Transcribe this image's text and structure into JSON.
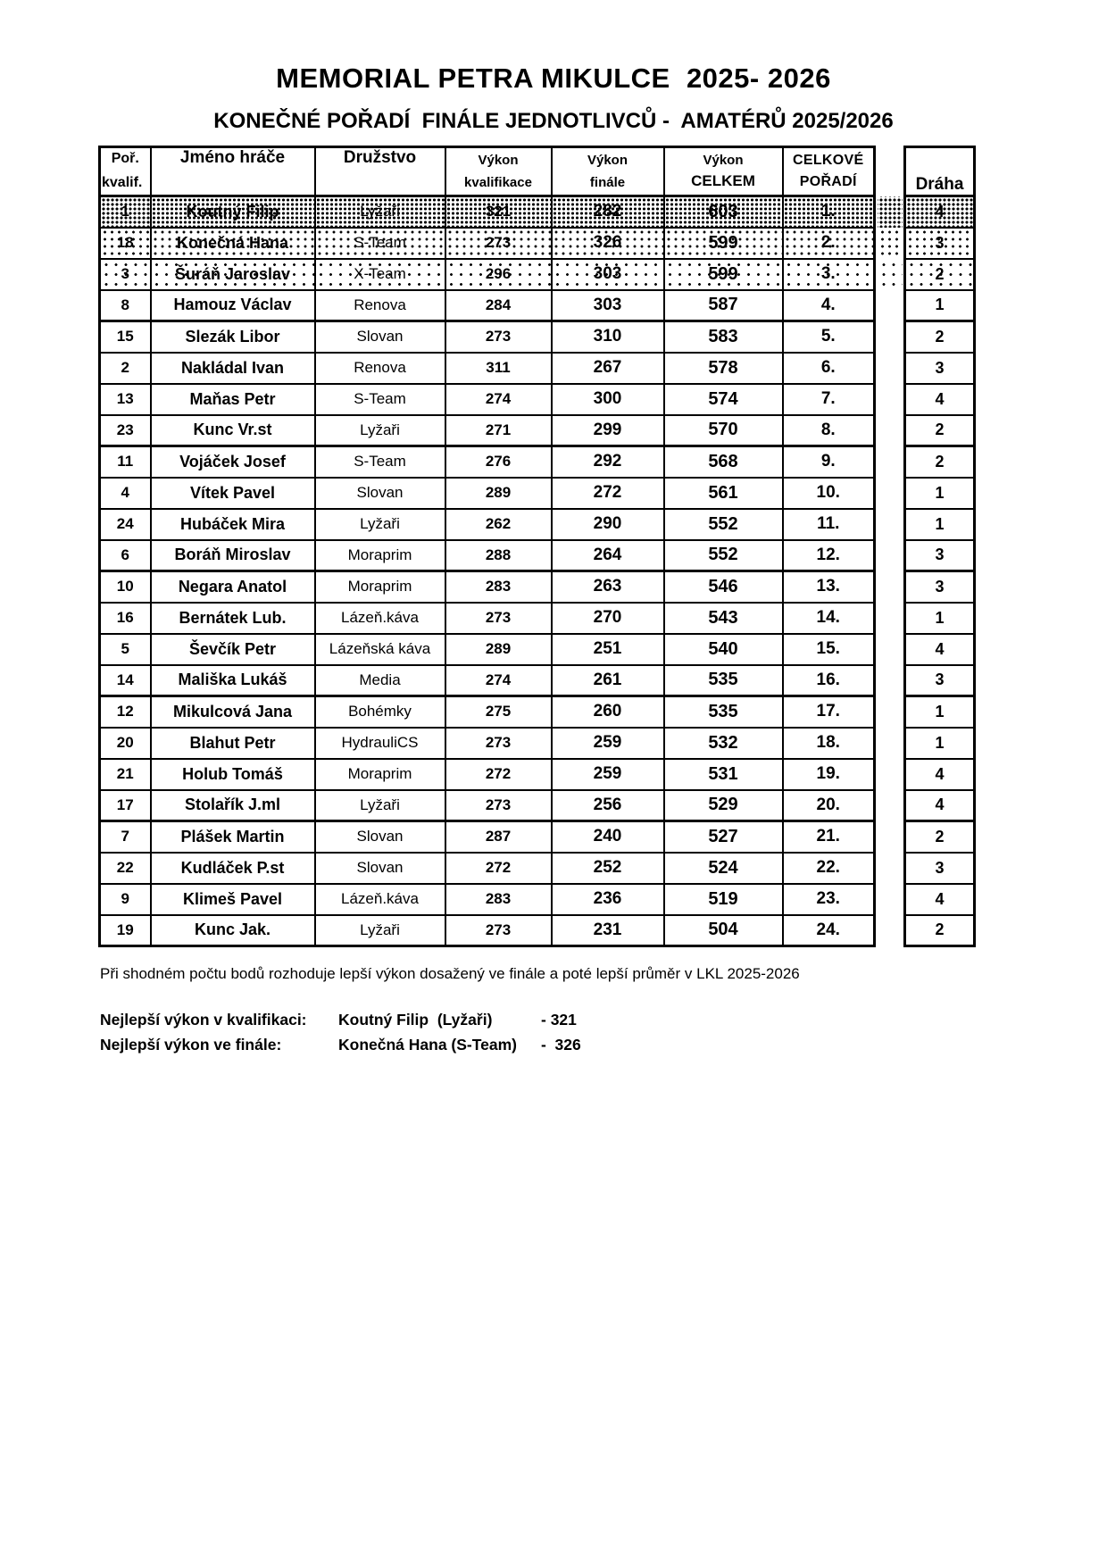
{
  "title": "MEMORIAL PETRA MIKULCE  2025- 2026",
  "subtitle": "KONEČNÉ POŘADÍ  FINÁLE JEDNOTLIVCŮ -  AMATÉRŮ 2025/2026",
  "table": {
    "headers": {
      "rank_qual_line1": "Poř.",
      "rank_qual_line2": "kvalif.",
      "player": "Jméno hráče",
      "team": "Družstvo",
      "perf_qual_line1": "Výkon",
      "perf_qual_line2": "kvalifikace",
      "perf_final_line1": "Výkon",
      "perf_final_line2": "finále",
      "perf_total_line1": "Výkon",
      "perf_total_line2": "CELKEM",
      "overall_line1": "CELKOVÉ",
      "overall_line2": "POŘADÍ",
      "lane": "Dráha"
    },
    "rows": [
      {
        "qualifying_rank": "1",
        "player": "Koutný Filip",
        "team": "Lyžaři",
        "qualification": "321",
        "final": "282",
        "total": "603",
        "overall_rank": "1.",
        "lane": "4"
      },
      {
        "qualifying_rank": "18",
        "player": "Konečná Hana",
        "team": "S-Team",
        "qualification": "273",
        "final": "326",
        "total": "599",
        "overall_rank": "2.",
        "lane": "3"
      },
      {
        "qualifying_rank": "3",
        "player": "Šuráň Jaroslav",
        "team": "X-Team",
        "qualification": "296",
        "final": "303",
        "total": "599",
        "overall_rank": "3.",
        "lane": "2"
      },
      {
        "qualifying_rank": "8",
        "player": "Hamouz Václav",
        "team": "Renova",
        "qualification": "284",
        "final": "303",
        "total": "587",
        "overall_rank": "4.",
        "lane": "1"
      },
      {
        "qualifying_rank": "15",
        "player": "Slezák Libor",
        "team": "Slovan",
        "qualification": "273",
        "final": "310",
        "total": "583",
        "overall_rank": "5.",
        "lane": "2"
      },
      {
        "qualifying_rank": "2",
        "player": "Nakládal Ivan",
        "team": "Renova",
        "qualification": "311",
        "final": "267",
        "total": "578",
        "overall_rank": "6.",
        "lane": "3"
      },
      {
        "qualifying_rank": "13",
        "player": "Maňas Petr",
        "team": "S-Team",
        "qualification": "274",
        "final": "300",
        "total": "574",
        "overall_rank": "7.",
        "lane": "4"
      },
      {
        "qualifying_rank": "23",
        "player": "Kunc Vr.st",
        "team": "Lyžaři",
        "qualification": "271",
        "final": "299",
        "total": "570",
        "overall_rank": "8.",
        "lane": "2"
      },
      {
        "qualifying_rank": "11",
        "player": "Vojáček Josef",
        "team": "S-Team",
        "qualification": "276",
        "final": "292",
        "total": "568",
        "overall_rank": "9.",
        "lane": "2"
      },
      {
        "qualifying_rank": "4",
        "player": "Vítek Pavel",
        "team": "Slovan",
        "qualification": "289",
        "final": "272",
        "total": "561",
        "overall_rank": "10.",
        "lane": "1"
      },
      {
        "qualifying_rank": "24",
        "player": "Hubáček Mira",
        "team": "Lyžaři",
        "qualification": "262",
        "final": "290",
        "total": "552",
        "overall_rank": "11.",
        "lane": "1"
      },
      {
        "qualifying_rank": "6",
        "player": "Boráň Miroslav",
        "team": "Moraprim",
        "qualification": "288",
        "final": "264",
        "total": "552",
        "overall_rank": "12.",
        "lane": "3"
      },
      {
        "qualifying_rank": "10",
        "player": "Negara Anatol",
        "team": "Moraprim",
        "qualification": "283",
        "final": "263",
        "total": "546",
        "overall_rank": "13.",
        "lane": "3"
      },
      {
        "qualifying_rank": "16",
        "player": "Bernátek Lub.",
        "team": "Lázeň.káva",
        "qualification": "273",
        "final": "270",
        "total": "543",
        "overall_rank": "14.",
        "lane": "1"
      },
      {
        "qualifying_rank": "5",
        "player": "Ševčík Petr",
        "team": "Lázeňská káva",
        "qualification": "289",
        "final": "251",
        "total": "540",
        "overall_rank": "15.",
        "lane": "4"
      },
      {
        "qualifying_rank": "14",
        "player": "Mališka Lukáš",
        "team": "Media",
        "qualification": "274",
        "final": "261",
        "total": "535",
        "overall_rank": "16.",
        "lane": "3"
      },
      {
        "qualifying_rank": "12",
        "player": "Mikulcová Jana",
        "team": "Bohémky",
        "qualification": "275",
        "final": "260",
        "total": "535",
        "overall_rank": "17.",
        "lane": "1"
      },
      {
        "qualifying_rank": "20",
        "player": "Blahut Petr",
        "team": "HydrauliCS",
        "qualification": "273",
        "final": "259",
        "total": "532",
        "overall_rank": "18.",
        "lane": "1"
      },
      {
        "qualifying_rank": "21",
        "player": "Holub Tomáš",
        "team": "Moraprim",
        "qualification": "272",
        "final": "259",
        "total": "531",
        "overall_rank": "19.",
        "lane": "4"
      },
      {
        "qualifying_rank": "17",
        "player": "Stolařík J.ml",
        "team": "Lyžaři",
        "qualification": "273",
        "final": "256",
        "total": "529",
        "overall_rank": "20.",
        "lane": "4"
      },
      {
        "qualifying_rank": "7",
        "player": "Plášek Martin",
        "team": "Slovan",
        "qualification": "287",
        "final": "240",
        "total": "527",
        "overall_rank": "21.",
        "lane": "2"
      },
      {
        "qualifying_rank": "22",
        "player": "Kudláček P.st",
        "team": "Slovan",
        "qualification": "272",
        "final": "252",
        "total": "524",
        "overall_rank": "22.",
        "lane": "3"
      },
      {
        "qualifying_rank": "9",
        "player": "Klimeš Pavel",
        "team": "Lázeň.káva",
        "qualification": "283",
        "final": "236",
        "total": "519",
        "overall_rank": "23.",
        "lane": "4"
      },
      {
        "qualifying_rank": "19",
        "player": "Kunc Jak.",
        "team": "Lyžaři",
        "qualification": "273",
        "final": "231",
        "total": "504",
        "overall_rank": "24.",
        "lane": "2"
      }
    ]
  },
  "footer": {
    "tiebreak_note": "Při shodném počtu bodů rozhoduje lepší výkon dosažený ve finále a poté lepší průměr v LKL 2025-2026",
    "best_qualification": {
      "label": "Nejlepší výkon v kvalifikaci:",
      "name": "Koutný Filip  (Lyžaři)",
      "value": "- 321"
    },
    "best_final": {
      "label": "Nejlepší výkon ve finále:",
      "name": "Konečná Hana (S-Team)",
      "value": "-  326"
    }
  }
}
